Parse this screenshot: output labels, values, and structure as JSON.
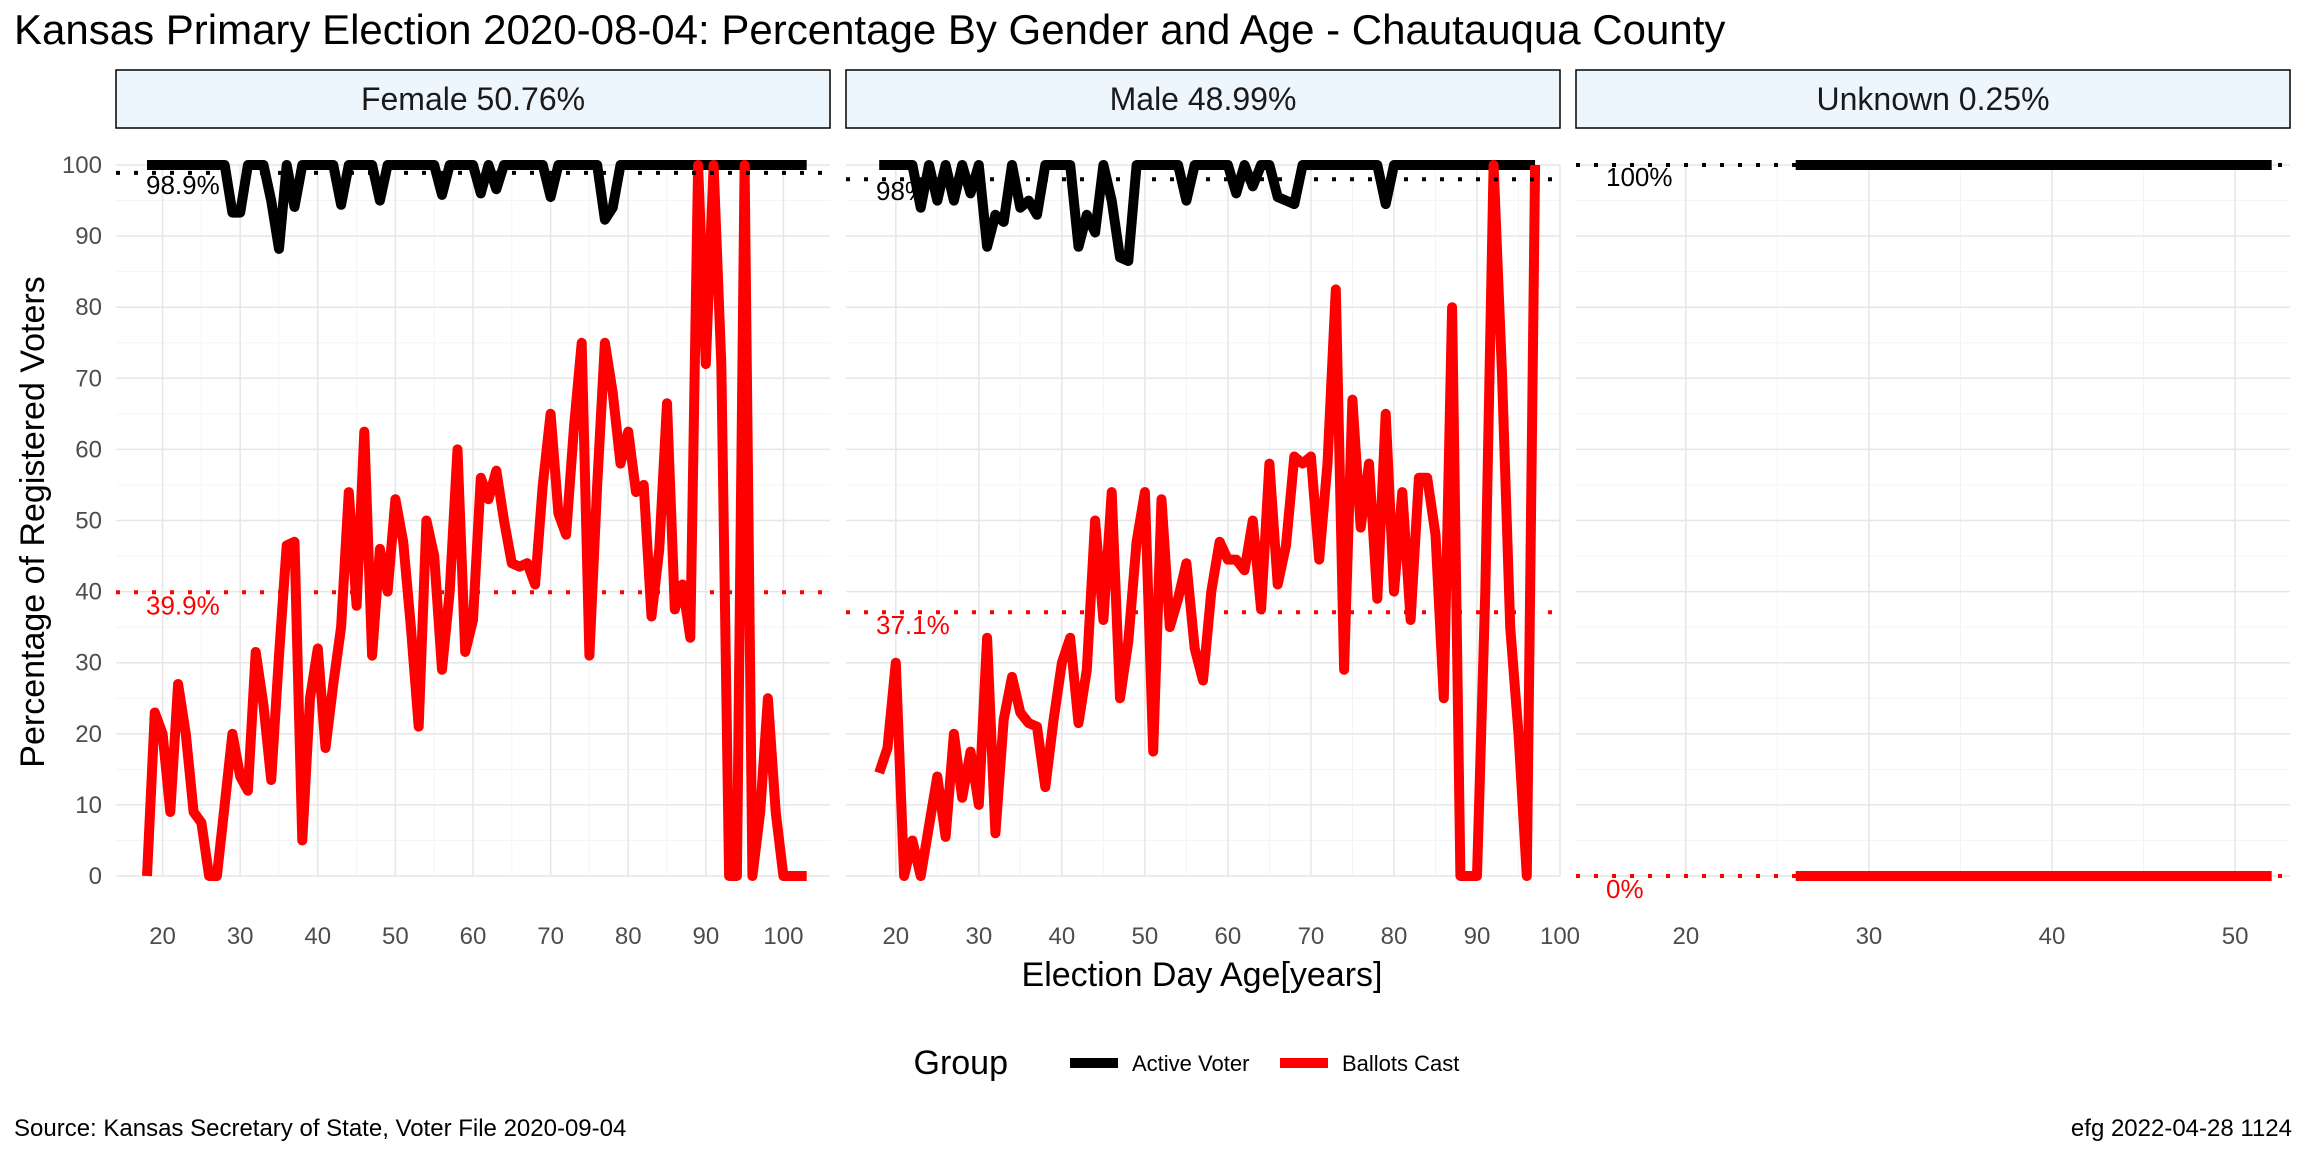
{
  "chart_data": {
    "type": "line",
    "title": "Kansas Primary Election 2020-08-04:  Percentage By Gender and Age - Chautauqua County",
    "xlabel": "Election Day Age[years]",
    "ylabel": "Percentage of Registered Voters",
    "ylim": [
      0,
      100
    ],
    "yticks": [
      0,
      10,
      20,
      30,
      40,
      50,
      60,
      70,
      80,
      90,
      100
    ],
    "grid": true,
    "legend": {
      "title": "Group",
      "placement": "bottom",
      "entries": [
        {
          "name": "Active Voter",
          "color": "#000000"
        },
        {
          "name": "Ballots Cast",
          "color": "#ff0000"
        }
      ]
    },
    "source": "Source:  Kansas Secretary of State, Voter File  2020-09-04",
    "stamp": "efg 2022-04-28 1124",
    "colors": {
      "active": "#000000",
      "ballots": "#ff0000",
      "strip_fill": "#eef6fd"
    },
    "panels": [
      {
        "label": "Female 50.76%",
        "xlim": [
          14,
          106
        ],
        "xticks": [
          20,
          30,
          40,
          50,
          60,
          70,
          80,
          90,
          100
        ],
        "active_ref": 98.9,
        "active_ref_label": "98.9%",
        "ballots_ref": 39.9,
        "ballots_ref_label": "39.9%",
        "series": [
          {
            "name": "Active Voter",
            "color": "#000000",
            "x": [
              18,
              19,
              20,
              21,
              22,
              23,
              24,
              25,
              26,
              27,
              28,
              29,
              30,
              31,
              32,
              33,
              34,
              35,
              36,
              37,
              38,
              39,
              40,
              41,
              42,
              43,
              44,
              45,
              46,
              47,
              48,
              49,
              50,
              51,
              52,
              53,
              54,
              55,
              56,
              57,
              58,
              59,
              60,
              61,
              62,
              63,
              64,
              65,
              66,
              67,
              68,
              69,
              70,
              71,
              72,
              73,
              74,
              75,
              76,
              77,
              78,
              79,
              80,
              81,
              82,
              83,
              84,
              85,
              86,
              87,
              88,
              89,
              90,
              91,
              92,
              93,
              94,
              95,
              96,
              97,
              98,
              99,
              100,
              101,
              102,
              103
            ],
            "y": [
              100,
              100,
              100,
              100,
              100,
              100,
              100,
              100,
              100,
              100,
              100,
              93.3,
              93.3,
              100,
              100,
              100,
              95,
              88.2,
              100,
              94.1,
              100,
              100,
              100,
              100,
              100,
              94.4,
              100,
              100,
              100,
              100,
              95,
              100,
              100,
              100,
              100,
              100,
              100,
              100,
              95.8,
              100,
              100,
              100,
              100,
              96,
              100,
              96.6,
              100,
              100,
              100,
              100,
              100,
              100,
              95.5,
              100,
              100,
              100,
              100,
              100,
              100,
              92.3,
              94,
              100,
              100,
              100,
              100,
              100,
              100,
              100,
              100,
              100,
              100,
              100,
              100,
              100,
              100,
              100,
              100,
              100,
              100,
              100,
              100,
              100,
              100,
              100,
              100,
              100
            ]
          },
          {
            "name": "Ballots Cast",
            "color": "#ff0000",
            "x": [
              18,
              19,
              20,
              21,
              22,
              23,
              24,
              25,
              26,
              27,
              28,
              29,
              30,
              31,
              32,
              33,
              34,
              35,
              36,
              37,
              38,
              39,
              40,
              41,
              42,
              43,
              44,
              45,
              46,
              47,
              48,
              49,
              50,
              51,
              52,
              53,
              54,
              55,
              56,
              57,
              58,
              59,
              60,
              61,
              62,
              63,
              64,
              65,
              66,
              67,
              68,
              69,
              70,
              71,
              72,
              73,
              74,
              75,
              76,
              77,
              78,
              79,
              80,
              81,
              82,
              83,
              84,
              85,
              86,
              87,
              88,
              89,
              90,
              91,
              92,
              93,
              94,
              95,
              96,
              97,
              98,
              99,
              100,
              101,
              102,
              103
            ],
            "y": [
              0,
              23,
              20,
              9,
              27,
              20,
              9,
              7.5,
              0,
              0,
              10,
              20,
              14,
              12,
              31.5,
              24,
              13.5,
              31,
              46.5,
              47,
              5,
              25,
              32,
              18,
              27,
              35,
              54,
              38,
              62.5,
              31,
              46,
              40,
              53,
              47,
              35,
              21,
              50,
              45,
              29,
              40,
              60,
              31.5,
              36,
              56,
              53,
              57,
              50,
              44,
              43.5,
              44,
              41,
              55,
              65,
              51,
              48,
              63,
              75,
              31,
              55,
              75,
              68,
              58,
              62.5,
              54,
              55,
              36.5,
              46,
              66.5,
              37.5,
              41,
              33.5,
              100,
              72,
              100,
              72,
              0,
              0,
              100,
              0,
              9,
              25,
              9,
              0,
              0,
              0,
              0
            ]
          }
        ]
      },
      {
        "label": "Male 48.99%",
        "xlim": [
          14,
          100
        ],
        "xticks": [
          20,
          30,
          40,
          50,
          60,
          70,
          80,
          90,
          100
        ],
        "active_ref": 98,
        "active_ref_label": "98%",
        "ballots_ref": 37.1,
        "ballots_ref_label": "37.1%",
        "series": [
          {
            "name": "Active Voter",
            "color": "#000000",
            "x": [
              18,
              19,
              20,
              21,
              22,
              23,
              24,
              25,
              26,
              27,
              28,
              29,
              30,
              31,
              32,
              33,
              34,
              35,
              36,
              37,
              38,
              39,
              40,
              41,
              42,
              43,
              44,
              45,
              46,
              47,
              48,
              49,
              50,
              51,
              52,
              53,
              54,
              55,
              56,
              57,
              58,
              59,
              60,
              61,
              62,
              63,
              64,
              65,
              66,
              67,
              68,
              69,
              70,
              71,
              72,
              73,
              74,
              75,
              76,
              77,
              78,
              79,
              80,
              81,
              82,
              83,
              84,
              85,
              86,
              87,
              88,
              89,
              90,
              91,
              92,
              93,
              94,
              95,
              96,
              97
            ],
            "y": [
              100,
              100,
              100,
              100,
              100,
              94,
              100,
              95,
              100,
              95,
              100,
              96,
              100,
              88.5,
              93,
              92,
              100,
              94,
              95,
              93,
              100,
              100,
              100,
              100,
              88.5,
              93,
              90.5,
              100,
              95,
              87,
              86.5,
              100,
              100,
              100,
              100,
              100,
              100,
              95,
              100,
              100,
              100,
              100,
              100,
              96,
              100,
              97,
              100,
              100,
              95.5,
              95,
              94.5,
              100,
              100,
              100,
              100,
              100,
              100,
              100,
              100,
              100,
              100,
              94.5,
              100,
              100,
              100,
              100,
              100,
              100,
              100,
              100,
              100,
              100,
              100,
              100,
              100,
              100,
              100,
              100,
              100,
              100
            ]
          },
          {
            "name": "Ballots Cast",
            "color": "#ff0000",
            "x": [
              18,
              19,
              20,
              21,
              22,
              23,
              24,
              25,
              26,
              27,
              28,
              29,
              30,
              31,
              32,
              33,
              34,
              35,
              36,
              37,
              38,
              39,
              40,
              41,
              42,
              43,
              44,
              45,
              46,
              47,
              48,
              49,
              50,
              51,
              52,
              53,
              54,
              55,
              56,
              57,
              58,
              59,
              60,
              61,
              62,
              63,
              64,
              65,
              66,
              67,
              68,
              69,
              70,
              71,
              72,
              73,
              74,
              75,
              76,
              77,
              78,
              79,
              80,
              81,
              82,
              83,
              84,
              85,
              86,
              87,
              88,
              89,
              90,
              91,
              92,
              93,
              94,
              95,
              96,
              97
            ],
            "y": [
              14.5,
              18,
              30,
              0,
              5,
              0,
              7,
              14,
              5.5,
              20,
              11,
              17.5,
              10,
              33.5,
              6,
              22,
              28,
              23,
              21.5,
              21,
              12.5,
              22,
              30,
              33.5,
              21.5,
              29,
              50,
              36,
              54,
              25,
              33,
              47,
              54,
              17.5,
              53,
              35,
              39,
              44,
              32,
              27.5,
              40,
              47,
              44.5,
              44.5,
              43,
              50,
              37.5,
              58,
              41,
              46.5,
              59,
              58,
              59,
              44.5,
              58,
              82.5,
              29,
              67,
              49,
              58,
              39,
              65,
              40,
              54,
              36,
              56,
              56,
              48,
              25,
              80,
              0,
              0,
              0,
              40,
              100,
              71,
              35,
              20,
              0,
              100
            ]
          }
        ]
      },
      {
        "label": "Unknown 0.25%",
        "xlim": [
          14,
          53
        ],
        "xticks": [
          20,
          30,
          40,
          50
        ],
        "active_ref": 100,
        "active_ref_label": "100%",
        "ballots_ref": 0,
        "ballots_ref_label": "0%",
        "series": [
          {
            "name": "Active Voter",
            "color": "#000000",
            "x": [
              26,
              52
            ],
            "y": [
              100,
              100
            ]
          },
          {
            "name": "Ballots Cast",
            "color": "#ff0000",
            "x": [
              26,
              52
            ],
            "y": [
              0,
              0
            ]
          }
        ]
      }
    ]
  }
}
